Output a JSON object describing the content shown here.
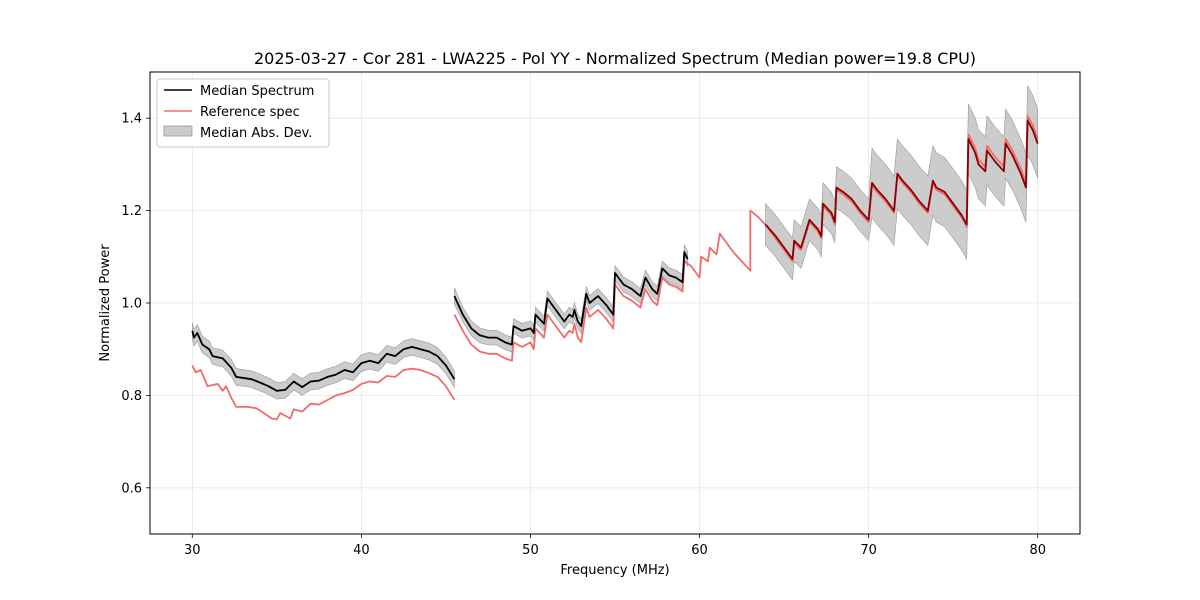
{
  "chart_data": {
    "type": "line",
    "title": "2025-03-27 - Cor 281 - LWA225 - Pol YY - Normalized Spectrum (Median power=19.8 CPU)",
    "xlabel": "Frequency (MHz)",
    "ylabel": "Normalized Power",
    "xlim": [
      27.5,
      82.5
    ],
    "ylim": [
      0.5,
      1.5
    ],
    "xticks": [
      30,
      40,
      50,
      60,
      70,
      80
    ],
    "yticks": [
      0.6,
      0.8,
      1.0,
      1.2,
      1.4
    ],
    "grid": true,
    "legend_position": "upper-left",
    "legend": {
      "median": "Median Spectrum",
      "reference": "Reference spec",
      "mad": "Median Abs. Dev."
    },
    "colors": {
      "median": "#000000",
      "reference": "#f26b6b",
      "mad_fill": "#bfbfbf",
      "overlap": "#8b0000"
    },
    "median_segments": [
      [
        [
          30.0,
          0.94
        ],
        [
          30.1,
          0.925
        ],
        [
          30.3,
          0.935
        ],
        [
          30.6,
          0.91
        ],
        [
          31.0,
          0.9
        ],
        [
          31.2,
          0.885
        ],
        [
          31.8,
          0.88
        ],
        [
          32.3,
          0.86
        ],
        [
          32.6,
          0.84
        ],
        [
          33.5,
          0.835
        ],
        [
          34.0,
          0.828
        ],
        [
          34.5,
          0.82
        ],
        [
          35.0,
          0.81
        ],
        [
          35.5,
          0.812
        ],
        [
          36.0,
          0.83
        ],
        [
          36.5,
          0.818
        ],
        [
          37.0,
          0.83
        ],
        [
          37.5,
          0.832
        ],
        [
          38.0,
          0.84
        ],
        [
          38.5,
          0.845
        ],
        [
          39.0,
          0.855
        ],
        [
          39.5,
          0.85
        ],
        [
          40.0,
          0.87
        ],
        [
          40.5,
          0.875
        ],
        [
          41.0,
          0.87
        ],
        [
          41.5,
          0.89
        ],
        [
          42.0,
          0.885
        ],
        [
          42.5,
          0.9
        ],
        [
          43.0,
          0.905
        ],
        [
          43.5,
          0.9
        ],
        [
          44.0,
          0.895
        ],
        [
          44.5,
          0.885
        ],
        [
          45.0,
          0.865
        ],
        [
          45.5,
          0.835
        ]
      ],
      [
        [
          45.5,
          1.015
        ],
        [
          46.0,
          0.975
        ],
        [
          46.5,
          0.945
        ],
        [
          47.0,
          0.93
        ],
        [
          47.5,
          0.925
        ],
        [
          48.0,
          0.925
        ],
        [
          48.5,
          0.915
        ],
        [
          48.9,
          0.91
        ],
        [
          49.0,
          0.95
        ],
        [
          49.5,
          0.94
        ],
        [
          50.0,
          0.945
        ],
        [
          50.2,
          0.935
        ],
        [
          50.3,
          0.975
        ],
        [
          50.8,
          0.955
        ],
        [
          51.0,
          1.01
        ],
        [
          51.5,
          0.985
        ],
        [
          52.0,
          0.96
        ],
        [
          52.3,
          0.975
        ],
        [
          52.5,
          0.97
        ],
        [
          52.6,
          0.985
        ],
        [
          52.8,
          0.96
        ],
        [
          53.0,
          0.95
        ],
        [
          53.3,
          1.02
        ],
        [
          53.5,
          1.0
        ],
        [
          54.0,
          1.015
        ],
        [
          54.5,
          0.995
        ],
        [
          54.9,
          0.975
        ],
        [
          55.0,
          1.065
        ],
        [
          55.5,
          1.04
        ],
        [
          56.0,
          1.03
        ],
        [
          56.5,
          1.015
        ],
        [
          56.8,
          1.055
        ],
        [
          57.2,
          1.03
        ],
        [
          57.5,
          1.02
        ],
        [
          57.8,
          1.075
        ],
        [
          58.2,
          1.06
        ],
        [
          58.6,
          1.055
        ],
        [
          59.0,
          1.045
        ],
        [
          59.1,
          1.11
        ],
        [
          59.3,
          1.095
        ]
      ],
      [
        [
          63.9,
          1.17
        ],
        [
          64.5,
          1.145
        ],
        [
          65.0,
          1.12
        ],
        [
          65.5,
          1.095
        ],
        [
          65.6,
          1.135
        ],
        [
          66.0,
          1.12
        ],
        [
          66.5,
          1.18
        ],
        [
          67.0,
          1.16
        ],
        [
          67.2,
          1.145
        ],
        [
          67.3,
          1.215
        ],
        [
          67.8,
          1.195
        ],
        [
          68.0,
          1.175
        ],
        [
          68.1,
          1.25
        ],
        [
          68.5,
          1.24
        ],
        [
          69.0,
          1.225
        ],
        [
          69.5,
          1.2
        ],
        [
          70.0,
          1.18
        ],
        [
          70.2,
          1.26
        ],
        [
          70.5,
          1.245
        ],
        [
          71.0,
          1.225
        ],
        [
          71.5,
          1.2
        ],
        [
          71.7,
          1.28
        ],
        [
          72.0,
          1.265
        ],
        [
          72.5,
          1.245
        ],
        [
          73.0,
          1.22
        ],
        [
          73.5,
          1.2
        ],
        [
          73.8,
          1.265
        ],
        [
          74.0,
          1.25
        ],
        [
          74.5,
          1.24
        ],
        [
          75.0,
          1.215
        ],
        [
          75.5,
          1.19
        ],
        [
          75.8,
          1.17
        ],
        [
          75.9,
          1.355
        ],
        [
          76.3,
          1.325
        ],
        [
          76.5,
          1.3
        ],
        [
          76.9,
          1.285
        ],
        [
          77.0,
          1.33
        ],
        [
          77.5,
          1.305
        ],
        [
          78.0,
          1.285
        ],
        [
          78.1,
          1.345
        ],
        [
          78.5,
          1.32
        ],
        [
          79.0,
          1.28
        ],
        [
          79.3,
          1.25
        ],
        [
          79.4,
          1.395
        ],
        [
          79.7,
          1.375
        ],
        [
          80.0,
          1.345
        ]
      ]
    ],
    "reference_segments": [
      [
        [
          30.0,
          0.865
        ],
        [
          30.2,
          0.85
        ],
        [
          30.5,
          0.855
        ],
        [
          30.9,
          0.82
        ],
        [
          31.5,
          0.825
        ],
        [
          31.8,
          0.81
        ],
        [
          32.0,
          0.82
        ],
        [
          32.3,
          0.795
        ],
        [
          32.6,
          0.775
        ],
        [
          33.3,
          0.775
        ],
        [
          33.8,
          0.772
        ],
        [
          34.3,
          0.76
        ],
        [
          34.7,
          0.75
        ],
        [
          35.0,
          0.748
        ],
        [
          35.2,
          0.762
        ],
        [
          35.8,
          0.75
        ],
        [
          36.0,
          0.77
        ],
        [
          36.5,
          0.765
        ],
        [
          37.0,
          0.782
        ],
        [
          37.5,
          0.78
        ],
        [
          38.0,
          0.79
        ],
        [
          38.5,
          0.8
        ],
        [
          39.0,
          0.805
        ],
        [
          39.5,
          0.812
        ],
        [
          40.0,
          0.825
        ],
        [
          40.5,
          0.83
        ],
        [
          41.0,
          0.828
        ],
        [
          41.5,
          0.842
        ],
        [
          42.0,
          0.84
        ],
        [
          42.5,
          0.855
        ],
        [
          43.0,
          0.858
        ],
        [
          43.5,
          0.855
        ],
        [
          44.0,
          0.848
        ],
        [
          44.5,
          0.84
        ],
        [
          45.0,
          0.82
        ],
        [
          45.5,
          0.79
        ]
      ],
      [
        [
          45.5,
          0.975
        ],
        [
          46.0,
          0.94
        ],
        [
          46.5,
          0.91
        ],
        [
          47.0,
          0.895
        ],
        [
          47.5,
          0.89
        ],
        [
          48.0,
          0.89
        ],
        [
          48.5,
          0.88
        ],
        [
          48.9,
          0.875
        ],
        [
          49.0,
          0.915
        ],
        [
          49.5,
          0.905
        ],
        [
          50.0,
          0.915
        ],
        [
          50.2,
          0.9
        ],
        [
          50.3,
          0.945
        ],
        [
          50.8,
          0.925
        ],
        [
          51.0,
          0.975
        ],
        [
          51.5,
          0.95
        ],
        [
          52.0,
          0.925
        ],
        [
          52.3,
          0.94
        ],
        [
          52.5,
          0.935
        ],
        [
          52.6,
          0.955
        ],
        [
          52.8,
          0.925
        ],
        [
          53.0,
          0.915
        ],
        [
          53.3,
          0.99
        ],
        [
          53.5,
          0.97
        ],
        [
          54.0,
          0.985
        ],
        [
          54.5,
          0.965
        ],
        [
          54.9,
          0.945
        ],
        [
          55.0,
          1.04
        ],
        [
          55.5,
          1.015
        ],
        [
          56.0,
          1.005
        ],
        [
          56.5,
          0.99
        ],
        [
          56.8,
          1.03
        ],
        [
          57.2,
          1.005
        ],
        [
          57.5,
          0.995
        ],
        [
          57.8,
          1.055
        ],
        [
          58.2,
          1.04
        ],
        [
          58.6,
          1.035
        ],
        [
          59.0,
          1.025
        ],
        [
          59.1,
          1.09
        ],
        [
          59.5,
          1.08
        ],
        [
          60.0,
          1.055
        ],
        [
          60.1,
          1.1
        ],
        [
          60.5,
          1.09
        ],
        [
          60.6,
          1.12
        ],
        [
          61.0,
          1.105
        ],
        [
          61.2,
          1.15
        ],
        [
          61.5,
          1.135
        ],
        [
          62.0,
          1.11
        ],
        [
          62.5,
          1.09
        ],
        [
          63.0,
          1.07
        ],
        [
          63.0,
          1.2
        ],
        [
          63.5,
          1.185
        ],
        [
          64.0,
          1.165
        ],
        [
          64.5,
          1.14
        ],
        [
          65.0,
          1.115
        ],
        [
          65.5,
          1.09
        ],
        [
          65.6,
          1.13
        ],
        [
          66.0,
          1.115
        ],
        [
          66.5,
          1.175
        ],
        [
          67.0,
          1.155
        ],
        [
          67.2,
          1.14
        ],
        [
          67.3,
          1.21
        ],
        [
          67.8,
          1.19
        ],
        [
          68.0,
          1.17
        ],
        [
          68.1,
          1.245
        ],
        [
          68.5,
          1.235
        ],
        [
          69.0,
          1.22
        ],
        [
          69.5,
          1.195
        ],
        [
          70.0,
          1.175
        ],
        [
          70.2,
          1.255
        ],
        [
          70.5,
          1.24
        ],
        [
          71.0,
          1.22
        ],
        [
          71.5,
          1.195
        ],
        [
          71.7,
          1.275
        ],
        [
          72.0,
          1.26
        ],
        [
          72.5,
          1.24
        ],
        [
          73.0,
          1.215
        ],
        [
          73.5,
          1.195
        ],
        [
          73.8,
          1.26
        ],
        [
          74.0,
          1.245
        ],
        [
          74.5,
          1.235
        ],
        [
          75.0,
          1.21
        ],
        [
          75.5,
          1.185
        ],
        [
          75.8,
          1.165
        ],
        [
          75.9,
          1.365
        ],
        [
          76.3,
          1.335
        ],
        [
          76.5,
          1.31
        ],
        [
          76.9,
          1.295
        ],
        [
          77.0,
          1.34
        ],
        [
          77.5,
          1.315
        ],
        [
          78.0,
          1.295
        ],
        [
          78.1,
          1.355
        ],
        [
          78.5,
          1.33
        ],
        [
          79.0,
          1.29
        ],
        [
          79.3,
          1.26
        ],
        [
          79.4,
          1.405
        ],
        [
          79.7,
          1.385
        ],
        [
          80.0,
          1.355
        ]
      ]
    ],
    "mad_halfwidth": [
      {
        "from": 30.0,
        "to": 45.5,
        "value": 0.018
      },
      {
        "from": 45.5,
        "to": 59.3,
        "value": 0.016
      },
      {
        "from": 63.9,
        "to": 70.0,
        "value": 0.045
      },
      {
        "from": 70.0,
        "to": 80.0,
        "value": 0.075
      }
    ]
  }
}
